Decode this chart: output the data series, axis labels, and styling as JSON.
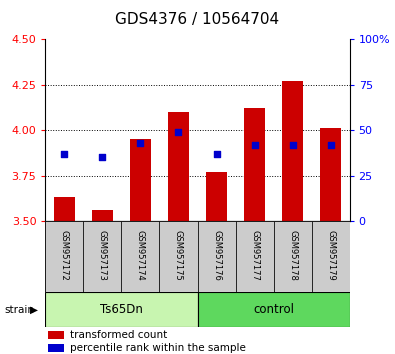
{
  "title": "GDS4376 / 10564704",
  "samples": [
    "GSM957172",
    "GSM957173",
    "GSM957174",
    "GSM957175",
    "GSM957176",
    "GSM957177",
    "GSM957178",
    "GSM957179"
  ],
  "red_values": [
    3.635,
    3.56,
    3.95,
    4.1,
    3.77,
    4.12,
    4.27,
    4.01
  ],
  "blue_values": [
    3.87,
    3.85,
    3.93,
    3.99,
    3.87,
    3.92,
    3.92,
    3.92
  ],
  "ylim_left": [
    3.5,
    4.5
  ],
  "ylim_right": [
    0,
    100
  ],
  "right_ticks": [
    0,
    25,
    50,
    75,
    100
  ],
  "right_tick_labels": [
    "0",
    "25",
    "50",
    "75",
    "100%"
  ],
  "left_ticks": [
    3.5,
    3.75,
    4.0,
    4.25,
    4.5
  ],
  "groups": [
    {
      "label": "Ts65Dn",
      "start": 0,
      "end": 4,
      "color": "#c8f5b0"
    },
    {
      "label": "control",
      "start": 4,
      "end": 8,
      "color": "#5ed85e"
    }
  ],
  "bar_color": "#cc0000",
  "dot_color": "#0000cc",
  "bar_bottom": 3.5,
  "bar_width": 0.55,
  "dot_size": 22,
  "bg_color": "#ffffff",
  "tick_label_area_bg": "#cccccc",
  "title_fontsize": 11,
  "axis_fontsize": 8,
  "legend_fontsize": 7.5,
  "strain_label": "strain",
  "gridline_y": [
    3.75,
    4.0,
    4.25
  ]
}
